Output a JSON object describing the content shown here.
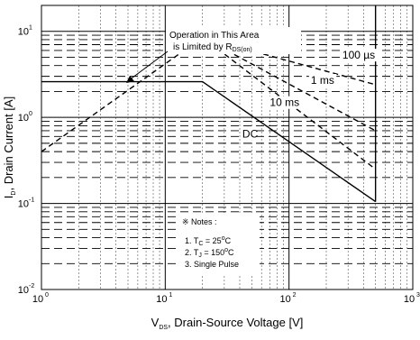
{
  "chart_data": {
    "type": "line",
    "title": "",
    "xlabel": {
      "main": "V",
      "sub": "DS",
      "rest": ", Drain-Source Voltage [V]"
    },
    "ylabel": {
      "main": "I",
      "sub": "D",
      "rest": ", Drain Current [A]"
    },
    "x_scale": "log",
    "y_scale": "log",
    "xlim": [
      1,
      1000
    ],
    "ylim": [
      0.01,
      20
    ],
    "x_ticks": [
      {
        "value": 1,
        "base": "10",
        "exp": "0"
      },
      {
        "value": 10,
        "base": "10",
        "exp": "1"
      },
      {
        "value": 100,
        "base": "10",
        "exp": "2"
      },
      {
        "value": 1000,
        "base": "10",
        "exp": "3"
      }
    ],
    "y_ticks": [
      {
        "value": 0.01,
        "base": "10",
        "exp": "-2"
      },
      {
        "value": 0.1,
        "base": "10",
        "exp": "-1"
      },
      {
        "value": 1,
        "base": "10",
        "exp": "0"
      },
      {
        "value": 10,
        "base": "10",
        "exp": "1"
      }
    ],
    "grid": true,
    "series": [
      {
        "name": "DC",
        "style": "solid",
        "points": [
          [
            1,
            2.6
          ],
          [
            20,
            2.6
          ],
          [
            500,
            0.105
          ]
        ]
      },
      {
        "name": "10 ms",
        "style": "dashed",
        "points": [
          [
            1,
            0.4
          ],
          [
            20,
            8.5
          ],
          [
            500,
            0.25
          ]
        ]
      },
      {
        "name": "1 ms",
        "style": "dashed",
        "points": [
          [
            20,
            8.5
          ],
          [
            500,
            0.7
          ]
        ]
      },
      {
        "name": "100 µs",
        "style": "dashed",
        "points": [
          [
            20,
            8.5
          ],
          [
            500,
            2.4
          ]
        ]
      },
      {
        "name": "V_DSS limit",
        "style": "solid",
        "points": [
          [
            500,
            0.105
          ],
          [
            500,
            20
          ]
        ]
      }
    ],
    "curve_labels": [
      {
        "text": "100 µs",
        "x": 270,
        "y": 4.8
      },
      {
        "text": "1 ms",
        "x": 150,
        "y": 2.45
      },
      {
        "text": "10 ms",
        "x": 70,
        "y": 1.35
      },
      {
        "text": "DC",
        "x": 42,
        "y": 0.58
      }
    ],
    "annotation": {
      "line1": "Operation in This Area",
      "line2_main": "is Limited by R",
      "line2_sub": "DS(on)"
    },
    "notes": {
      "title": "※ Notes :",
      "items": [
        {
          "prefix": "1. T",
          "sub": "C",
          "rest": " = 25",
          "sup": "o",
          "unit": "C"
        },
        {
          "prefix": "2. T",
          "sub": "J",
          "rest": " = 150",
          "sup": "o",
          "unit": "C"
        },
        {
          "prefix": "3. Single Pulse",
          "sub": "",
          "rest": "",
          "sup": "",
          "unit": ""
        }
      ]
    }
  }
}
